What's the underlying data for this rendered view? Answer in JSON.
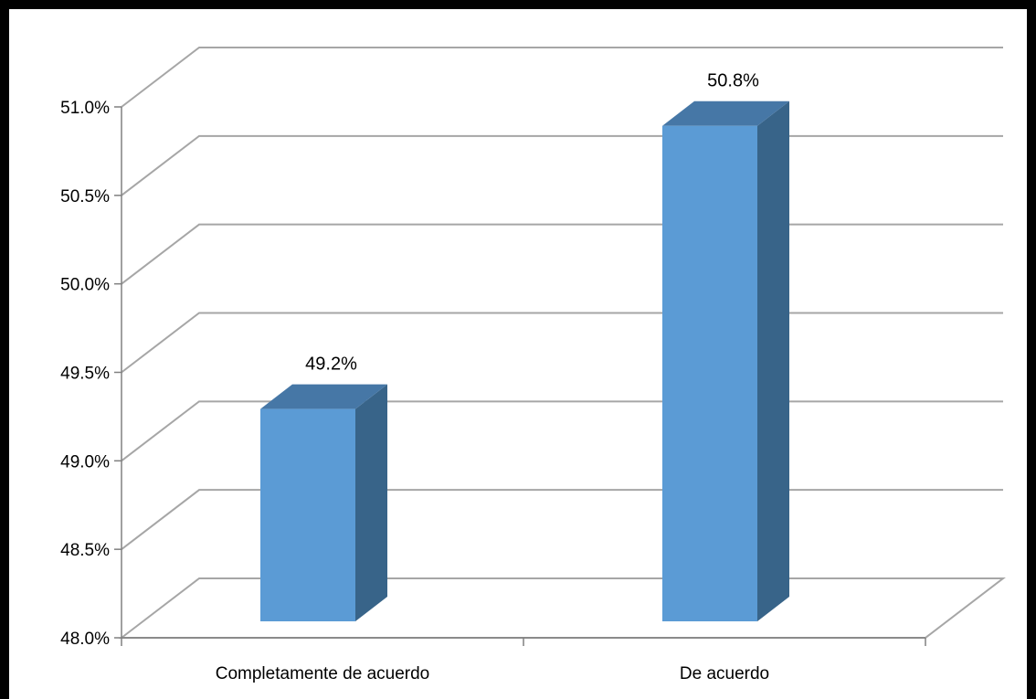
{
  "chart_data": {
    "type": "bar",
    "style": "3d-column",
    "categories": [
      "Completamente de acuerdo",
      "De acuerdo"
    ],
    "values": [
      49.2,
      50.8
    ],
    "value_labels": [
      "49.2%",
      "50.8%"
    ],
    "ylim": [
      48.0,
      51.0
    ],
    "yticks": [
      "48.0%",
      "48.5%",
      "49.0%",
      "49.5%",
      "50.0%",
      "50.5%",
      "51.0%"
    ],
    "title": "",
    "xlabel": "",
    "ylabel": "",
    "grid": true,
    "legend": "none",
    "colors": {
      "bar_front": "#5B9BD5",
      "bar_top": "#4677A6",
      "bar_side": "#386489",
      "grid": "#A6A6A6",
      "axis": "#808080"
    }
  }
}
